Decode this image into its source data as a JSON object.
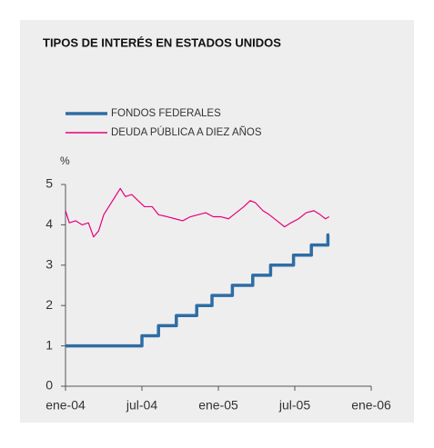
{
  "chart_data": {
    "type": "line",
    "title": "TIPOS DE INTERÉS EN ESTADOS UNIDOS",
    "y_label": "%",
    "xlim": [
      0,
      24
    ],
    "xticks": [
      {
        "value": 0,
        "label": "ene-04"
      },
      {
        "value": 6,
        "label": "jul-04"
      },
      {
        "value": 12,
        "label": "ene-05"
      },
      {
        "value": 18,
        "label": "jul-05"
      },
      {
        "value": 24,
        "label": "ene-06"
      }
    ],
    "ylim": [
      0,
      5
    ],
    "yticks": [
      0,
      1,
      2,
      3,
      4,
      5
    ],
    "grid": false,
    "series": [
      {
        "name": "FONDOS FEDERALES",
        "color": "#2e6da4",
        "x": [
          0,
          6,
          6,
          7.3,
          7.3,
          8.7,
          8.7,
          10.3,
          10.3,
          11.5,
          11.5,
          13.1,
          13.1,
          14.7,
          14.7,
          16.1,
          16.1,
          17.9,
          17.9,
          19.3,
          19.3,
          20.6,
          20.6,
          20.7
        ],
        "values": [
          1,
          1,
          1.25,
          1.25,
          1.5,
          1.5,
          1.75,
          1.75,
          2,
          2,
          2.25,
          2.25,
          2.5,
          2.5,
          2.75,
          2.75,
          3,
          3,
          3.25,
          3.25,
          3.5,
          3.5,
          3.75,
          3.75
        ]
      },
      {
        "name": "DEUDA PÚBLICA A DIEZ AÑOS",
        "color": "#e6007e",
        "x": [
          0,
          0.3,
          0.8,
          1.3,
          1.8,
          2.2,
          2.6,
          3.0,
          3.5,
          4.0,
          4.3,
          4.7,
          5.2,
          5.7,
          6.2,
          6.8,
          7.3,
          8,
          8.6,
          9.2,
          9.8,
          10.4,
          11,
          11.6,
          12.2,
          12.8,
          13.4,
          14,
          14.5,
          14.9,
          15.5,
          16,
          16.6,
          17.2,
          17.7,
          18.3,
          18.9,
          19.5,
          20,
          20.4,
          20.7
        ],
        "values": [
          4.35,
          4.05,
          4.1,
          4.0,
          4.05,
          3.7,
          3.85,
          4.25,
          4.5,
          4.75,
          4.9,
          4.7,
          4.75,
          4.6,
          4.45,
          4.45,
          4.25,
          4.2,
          4.15,
          4.1,
          4.2,
          4.25,
          4.3,
          4.2,
          4.2,
          4.15,
          4.3,
          4.45,
          4.6,
          4.55,
          4.35,
          4.25,
          4.1,
          3.95,
          4.05,
          4.15,
          4.3,
          4.35,
          4.25,
          4.15,
          4.2
        ]
      }
    ]
  }
}
